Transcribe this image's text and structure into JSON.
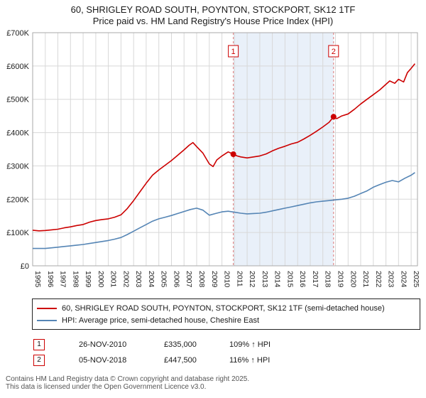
{
  "header": {
    "title": "60, SHRIGLEY ROAD SOUTH, POYNTON, STOCKPORT, SK12 1TF",
    "subtitle": "Price paid vs. HM Land Registry's House Price Index (HPI)"
  },
  "chart_data": {
    "type": "line",
    "x_range": [
      1995,
      2025.5
    ],
    "ylim": [
      0,
      700
    ],
    "y_unit": "GBP thousands",
    "y_tick_labels": [
      "£0",
      "£100K",
      "£200K",
      "£300K",
      "£400K",
      "£500K",
      "£600K",
      "£700K"
    ],
    "x_tick_years": [
      1995,
      1996,
      1997,
      1998,
      1999,
      2000,
      2001,
      2002,
      2003,
      2004,
      2005,
      2006,
      2007,
      2008,
      2009,
      2010,
      2011,
      2012,
      2013,
      2014,
      2015,
      2016,
      2017,
      2018,
      2019,
      2020,
      2021,
      2022,
      2023,
      2024,
      2025
    ],
    "grid": true,
    "legend_position": "bottom",
    "colors": {
      "price": "#cc0000",
      "hpi": "#5585b5",
      "dashed": "#dd7777",
      "shading": "#e9f0f9",
      "grid": "#d8d8d8",
      "frame": "#aaaaaa"
    },
    "series": [
      {
        "id": "price-paid-line",
        "name": "60, SHRIGLEY ROAD SOUTH, POYNTON, STOCKPORT, SK12 1TF (semi-detached house)",
        "color": "#cc0000",
        "width": 1.6,
        "x": [
          1995,
          1995.5,
          1996,
          1996.5,
          1997,
          1997.5,
          1998,
          1998.5,
          1999,
          1999.5,
          2000,
          2000.5,
          2001,
          2001.5,
          2002,
          2002.5,
          2003,
          2003.5,
          2004,
          2004.5,
          2005,
          2005.5,
          2006,
          2006.5,
          2007,
          2007.4,
          2007.7,
          2008,
          2008.5,
          2009,
          2009.3,
          2009.6,
          2010,
          2010.5,
          2010.9,
          2011.2,
          2011.5,
          2012,
          2012.5,
          2013,
          2013.5,
          2014,
          2014.5,
          2015,
          2015.5,
          2016,
          2016.5,
          2017,
          2017.5,
          2018,
          2018.5,
          2018.85,
          2019.1,
          2019.5,
          2020,
          2020.5,
          2021,
          2021.5,
          2022,
          2022.5,
          2023,
          2023.3,
          2023.7,
          2024,
          2024.4,
          2024.7,
          2025,
          2025.3
        ],
        "v": [
          107,
          105,
          106,
          108,
          110,
          114,
          117,
          121,
          124,
          131,
          136,
          139,
          141,
          146,
          153,
          172,
          196,
          222,
          248,
          272,
          288,
          302,
          316,
          332,
          348,
          362,
          370,
          358,
          338,
          306,
          298,
          318,
          330,
          342,
          335,
          330,
          327,
          324,
          327,
          330,
          336,
          345,
          353,
          359,
          366,
          371,
          381,
          392,
          404,
          417,
          431,
          447.5,
          442,
          450,
          456,
          470,
          486,
          500,
          514,
          528,
          545,
          555,
          548,
          560,
          552,
          580,
          593,
          607
        ]
      },
      {
        "id": "hpi-line",
        "name": "HPI: Average price, semi-detached house, Cheshire East",
        "color": "#5585b5",
        "width": 1.6,
        "x": [
          1995,
          1996,
          1996.5,
          1997,
          1997.5,
          1998,
          1998.5,
          1999,
          1999.5,
          2000,
          2000.5,
          2001,
          2001.5,
          2002,
          2002.5,
          2003,
          2003.5,
          2004,
          2004.5,
          2005,
          2005.5,
          2006,
          2006.5,
          2007,
          2007.5,
          2008,
          2008.5,
          2009,
          2009.5,
          2010,
          2010.5,
          2011,
          2011.5,
          2012,
          2012.5,
          2013,
          2013.5,
          2014,
          2014.5,
          2015,
          2015.5,
          2016,
          2016.5,
          2017,
          2017.5,
          2018,
          2018.5,
          2019,
          2019.5,
          2020,
          2020.5,
          2021,
          2021.5,
          2022,
          2022.5,
          2023,
          2023.5,
          2024,
          2024.5,
          2025,
          2025.3
        ],
        "v": [
          52,
          52,
          54,
          56,
          58,
          60,
          62,
          64,
          67,
          70,
          73,
          76,
          80,
          85,
          94,
          104,
          114,
          124,
          134,
          141,
          146,
          151,
          157,
          163,
          169,
          173,
          167,
          152,
          157,
          162,
          164,
          161,
          158,
          156,
          157,
          158,
          161,
          165,
          169,
          173,
          177,
          181,
          185,
          189,
          192,
          194,
          196,
          198,
          200,
          203,
          209,
          217,
          225,
          236,
          244,
          251,
          256,
          252,
          263,
          272,
          280
        ]
      }
    ],
    "markers": [
      {
        "label": "1",
        "x": 2010.9,
        "v": 335
      },
      {
        "label": "2",
        "x": 2018.85,
        "v": 447.5
      }
    ],
    "shaded_region": {
      "from": 2010.9,
      "to": 2018.85
    }
  },
  "legend": {
    "items": [
      {
        "label": "60, SHRIGLEY ROAD SOUTH, POYNTON, STOCKPORT, SK12 1TF (semi-detached house)",
        "color": "#cc0000"
      },
      {
        "label": "HPI: Average price, semi-detached house, Cheshire East",
        "color": "#5585b5"
      }
    ]
  },
  "transactions": [
    {
      "num": "1",
      "date": "26-NOV-2010",
      "price": "£335,000",
      "hpi": "109% ↑ HPI"
    },
    {
      "num": "2",
      "date": "05-NOV-2018",
      "price": "£447,500",
      "hpi": "116% ↑ HPI"
    }
  ],
  "footer": {
    "line1": "Contains HM Land Registry data © Crown copyright and database right 2025.",
    "line2": "This data is licensed under the Open Government Licence v3.0."
  }
}
